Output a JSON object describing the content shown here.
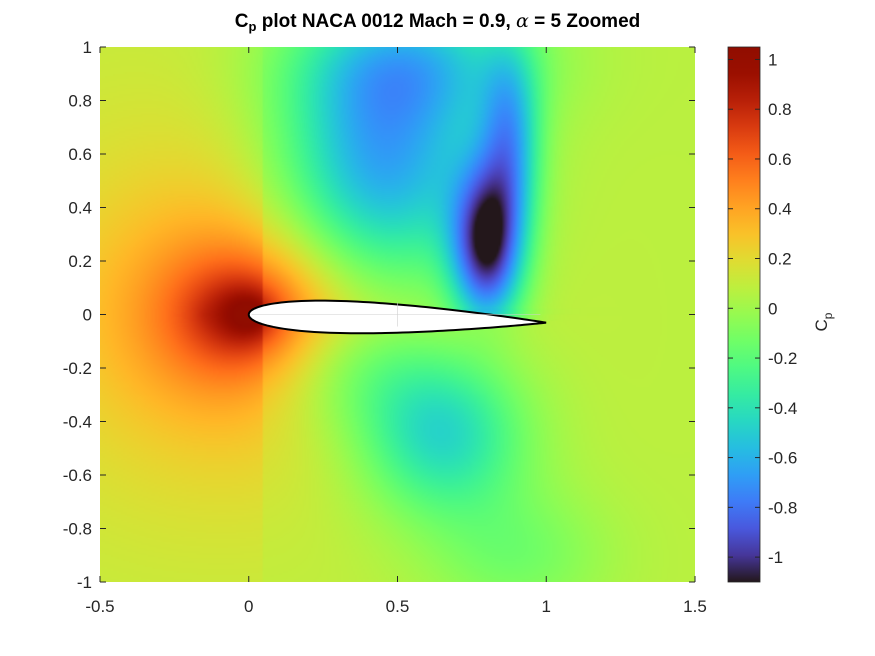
{
  "chart_data": {
    "type": "heatmap",
    "title_parts": {
      "pre": "C",
      "sub": "p",
      "mid": " plot NACA 0012 Mach = 0.9, ",
      "greek": "α",
      "post": " = 5 Zoomed"
    },
    "xlabel": "",
    "ylabel": "",
    "xlim": [
      -0.5,
      1.5
    ],
    "ylim": [
      -1,
      1
    ],
    "x_ticks": [
      -0.5,
      0,
      0.5,
      1,
      1.5
    ],
    "x_tick_labels": [
      "-0.5",
      "0",
      "0.5",
      "1",
      "1.5"
    ],
    "y_ticks": [
      1,
      0.8,
      0.6,
      0.4,
      0.2,
      0,
      -0.2,
      -0.4,
      -0.6,
      -0.8,
      -1
    ],
    "y_tick_labels": [
      "1",
      "0.8",
      "0.6",
      "0.4",
      "0.2",
      "0",
      "-0.2",
      "-0.4",
      "-0.6",
      "-0.8",
      "-1"
    ],
    "colorbar": {
      "label": "C",
      "label_sub": "p",
      "range": [
        -1.1,
        1.05
      ],
      "ticks": [
        0.8,
        0.6,
        0.4,
        0.2,
        0,
        -0.2,
        -0.4,
        -0.6,
        -0.8,
        -1
      ],
      "tick_labels": [
        "0.8",
        "0.6",
        "0.4",
        "0.2",
        "0",
        "-0.2",
        "-0.4",
        "-0.6",
        "-0.8",
        "-1"
      ],
      "extra_tick": 1,
      "extra_tick_label": "1",
      "colormap": "turbo"
    },
    "airfoil": {
      "name": "NACA 0012",
      "thickness_ratio": 0.12,
      "chord_start": 0,
      "chord_end": 1,
      "angle_of_attack_deg": 5,
      "mach": 0.9
    },
    "field_features": [
      {
        "feature": "stagnation",
        "x": 0.0,
        "y": 0.0,
        "cp": 1.0
      },
      {
        "feature": "suction_peak_upper",
        "x": 0.78,
        "y": 0.12,
        "cp": -1.1
      },
      {
        "feature": "suction_lower",
        "x": 0.6,
        "y": -0.4,
        "cp": -0.5
      },
      {
        "feature": "freestream",
        "cp": 0.05
      }
    ]
  }
}
